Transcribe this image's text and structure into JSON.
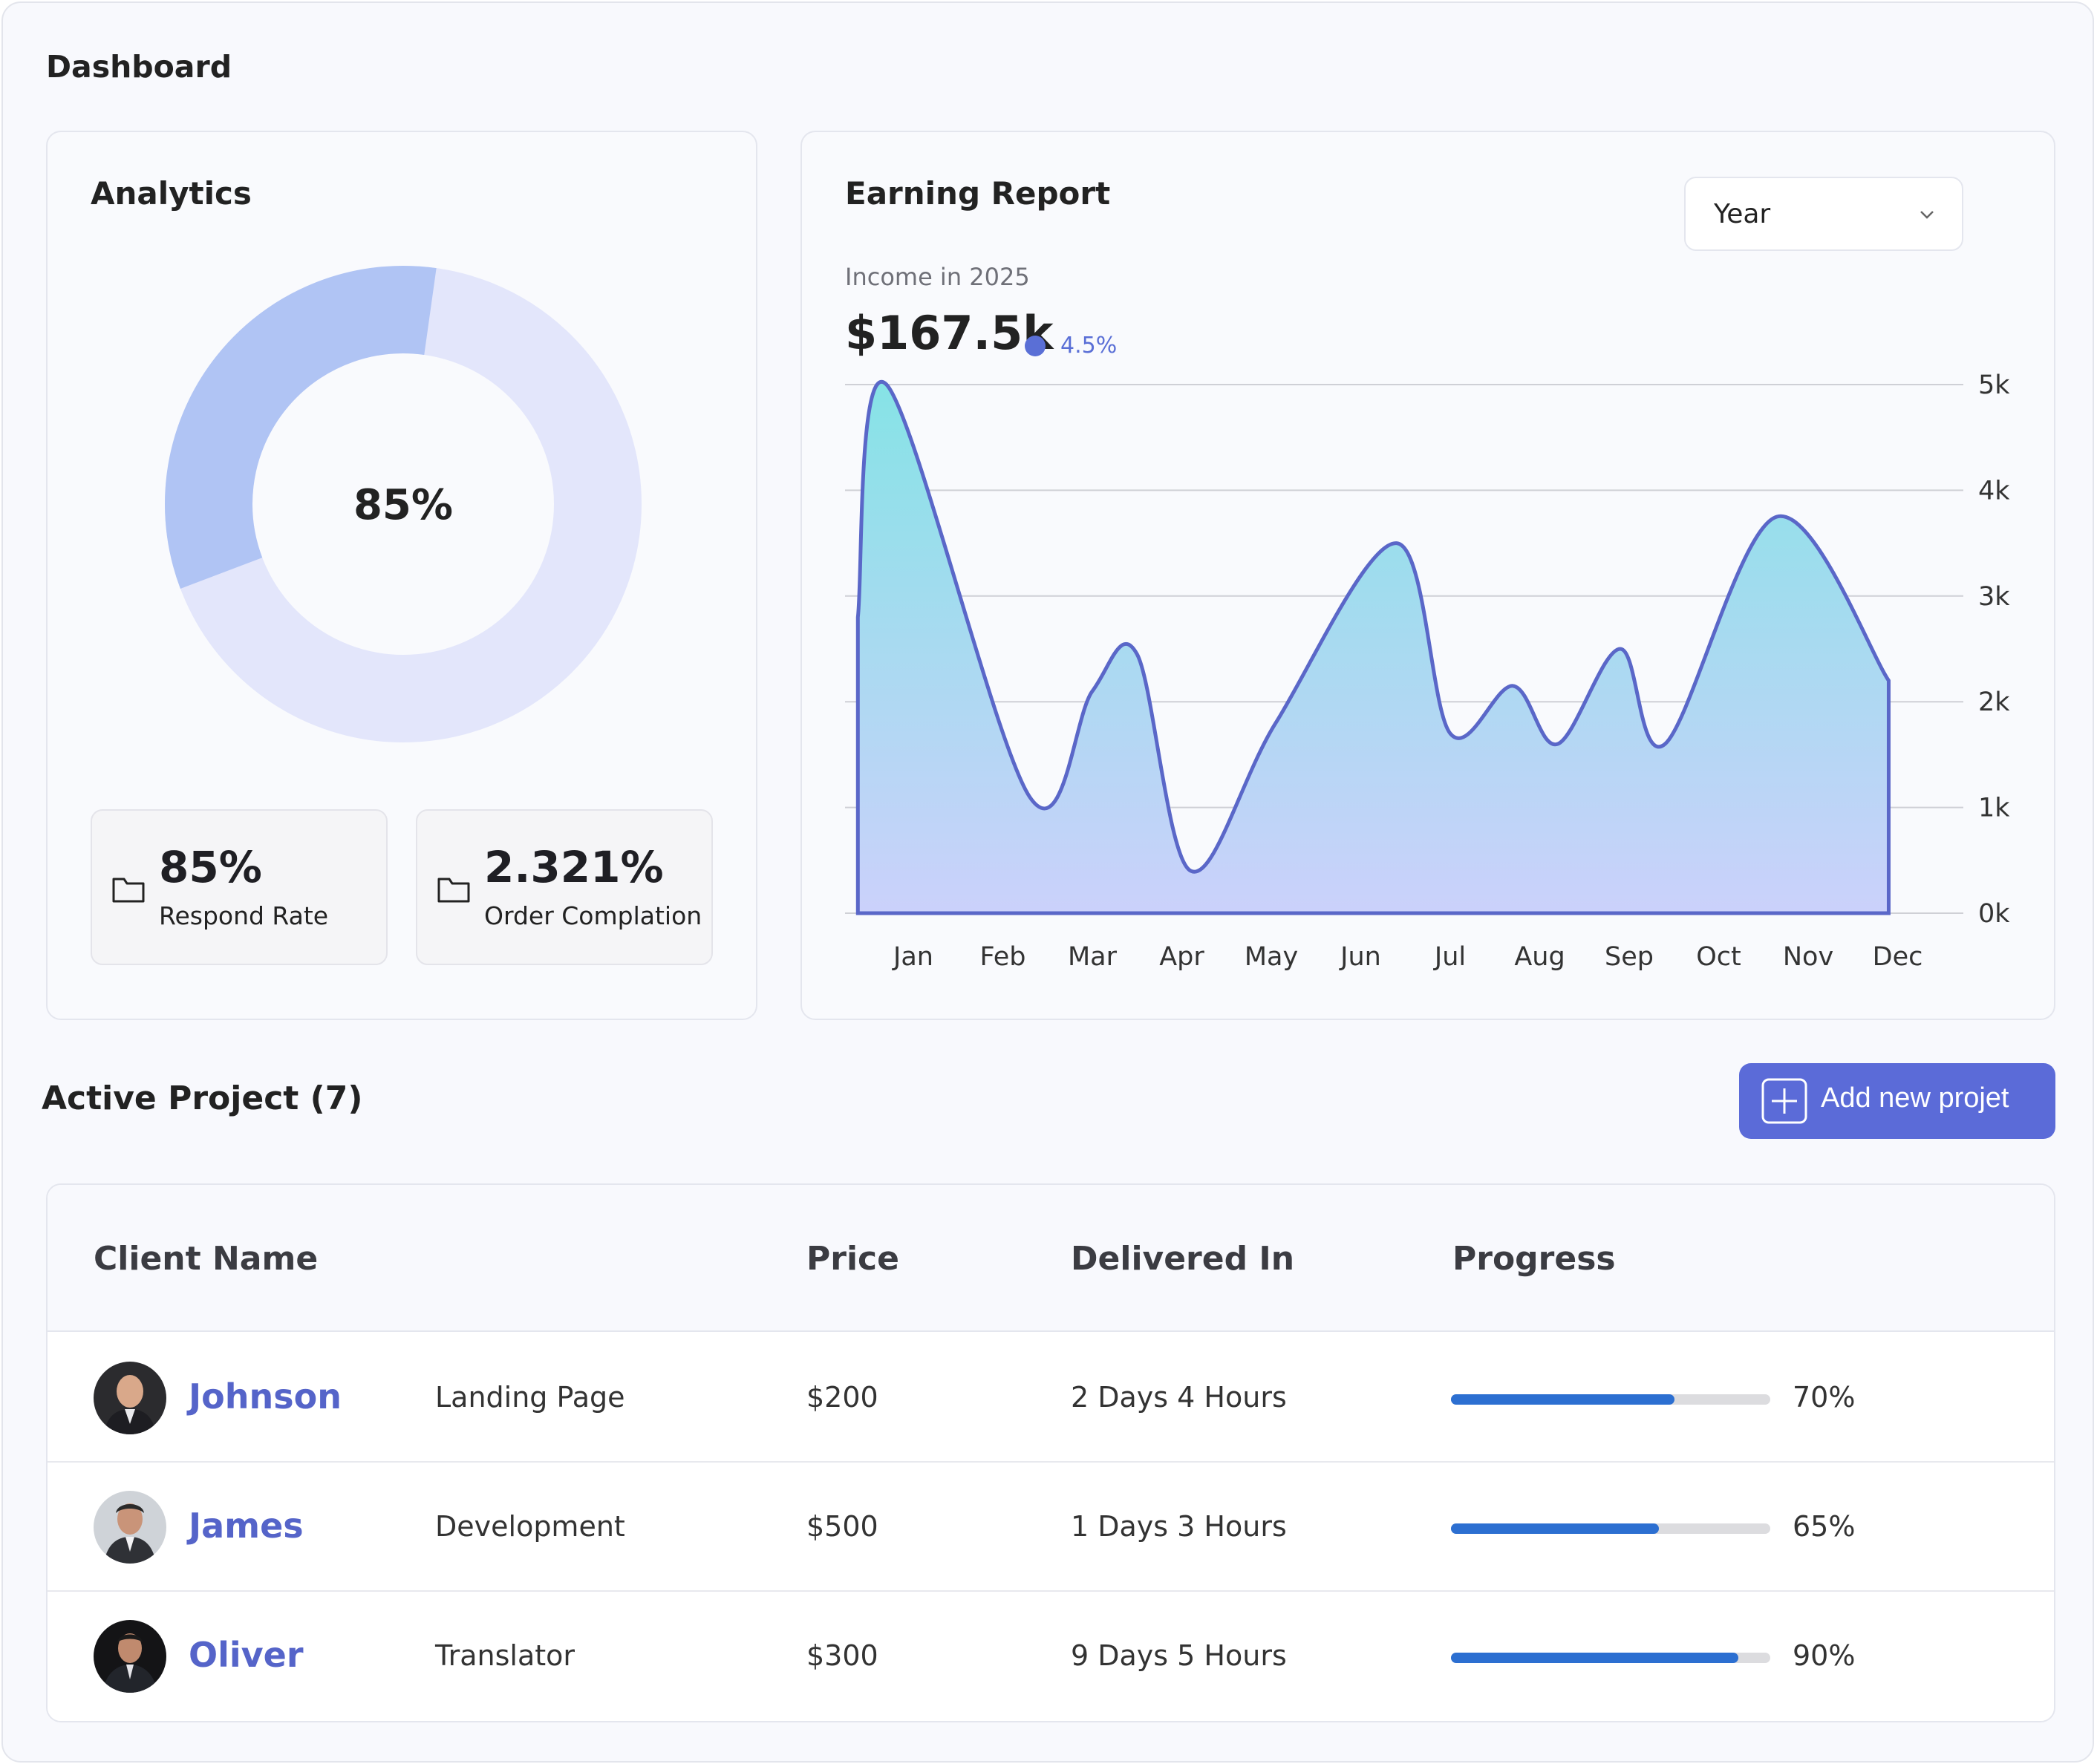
{
  "page": {
    "title": "Dashboard"
  },
  "analytics": {
    "title": "Analytics",
    "donut_percent": 85,
    "donut_label": "85%",
    "colors": {
      "primary": "#b0c4f4",
      "track": "#e3e6fb"
    },
    "stats": [
      {
        "value": "85%",
        "label": "Respond Rate",
        "icon": "folder-icon"
      },
      {
        "value": "2.321%",
        "label": "Order Complation",
        "icon": "folder-icon"
      }
    ]
  },
  "earning": {
    "title": "Earning Report",
    "period_select": {
      "value": "Year",
      "icon": "chevron-down-icon"
    },
    "income_label": "Income in 2025",
    "income_value": "$167.5k",
    "income_change": "4.5%",
    "accent": "#5a6fd6"
  },
  "chart_data": {
    "type": "area",
    "categories": [
      "Jan",
      "Feb",
      "Mar",
      "Apr",
      "May",
      "Jun",
      "Jul",
      "Aug",
      "Sep",
      "Oct",
      "Nov",
      "Dec"
    ],
    "values": [
      5.0,
      1.1,
      2.1,
      2.45,
      0.4,
      1.8,
      3.5,
      1.7,
      2.15,
      1.6,
      2.5,
      1.6,
      3.75,
      2.2
    ],
    "x": [
      -0.3,
      1.3,
      2.0,
      2.5,
      3.1,
      4.05,
      5.4,
      6.0,
      6.7,
      7.2,
      7.9,
      8.4,
      9.65,
      10.9
    ],
    "start_value": 2.8,
    "y_ticks": [
      "0k",
      "1k",
      "2k",
      "3k",
      "4k",
      "5k"
    ],
    "ylim": [
      0,
      5
    ],
    "grid": true,
    "colors": {
      "line": "#5a67c8",
      "fill_top": "#86e3e6",
      "fill_bottom": "#cbd1fb"
    }
  },
  "projects": {
    "title": "Active Project (7)",
    "add_button": {
      "label": "Add new projet",
      "icon": "plus-icon"
    },
    "columns": [
      "Client Name",
      "Price",
      "Delivered In",
      "Progress"
    ],
    "rows": [
      {
        "name": "Johnson",
        "project": "Landing Page",
        "price": "$200",
        "delivered": "2 Days 4 Hours",
        "progress": 0.7,
        "progress_label": "70%"
      },
      {
        "name": "James",
        "project": "Development",
        "price": "$500",
        "delivered": "1 Days 3 Hours",
        "progress": 0.65,
        "progress_label": "65%"
      },
      {
        "name": "Oliver",
        "project": "Translator",
        "price": "$300",
        "delivered": "9 Days 5 Hours",
        "progress": 0.9,
        "progress_label": "90%"
      }
    ],
    "progress_color": "#2c6fd1"
  }
}
